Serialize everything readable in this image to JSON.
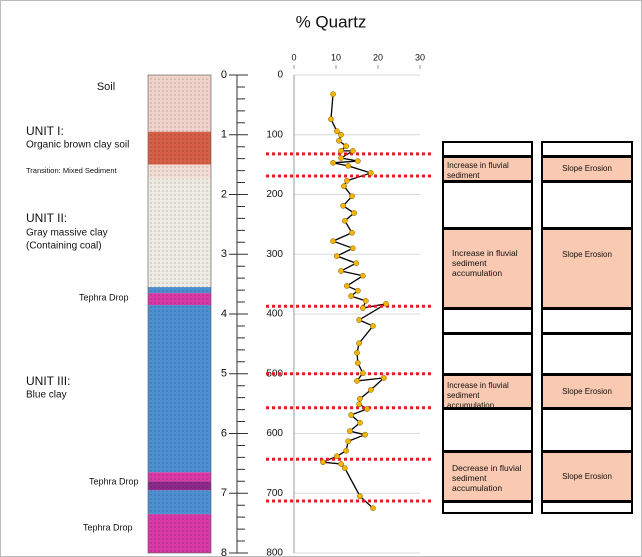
{
  "chart_data": {
    "type": "line",
    "title": "% Quartz",
    "x": [
      9.3,
      8.8,
      10.2,
      11.2,
      10.7,
      12.4,
      11.2,
      14,
      11.2,
      15.2,
      9.3,
      12.9,
      18.3,
      12.6,
      11.9,
      13.8,
      11.7,
      14.3,
      12.1,
      13.8,
      9.3,
      14,
      10.2,
      14.8,
      11.2,
      16.4,
      12.6,
      15.2,
      13.6,
      17.1,
      16.4,
      21.9,
      15.5,
      18.8,
      15.5,
      15,
      15.2,
      16.4,
      15,
      21.4,
      18.3,
      15.7,
      15.5,
      17.4,
      13.6,
      15.7,
      13.3,
      16.9,
      12.9,
      12.4,
      10.2,
      6.9,
      11.2,
      12.1,
      15.7,
      18.8
    ],
    "values": [
      32,
      74,
      94,
      100,
      110,
      119,
      127,
      127,
      139,
      144,
      147,
      152,
      164,
      177,
      186,
      203,
      219,
      231,
      244,
      264,
      278,
      290,
      303,
      315,
      328,
      336,
      353,
      361,
      370,
      378,
      390,
      383,
      410,
      420,
      449,
      465,
      482,
      499,
      512,
      507,
      527,
      542,
      551,
      559,
      569,
      582,
      596,
      602,
      613,
      629,
      638,
      648,
      651,
      658,
      705,
      725
    ],
    "color": "#f5b400",
    "line_color": "#000000",
    "xlim": [
      0,
      30
    ],
    "xticks": [
      0,
      10,
      20,
      30
    ],
    "ylim": [
      0,
      800
    ],
    "yticks": [
      0,
      100,
      200,
      300,
      400,
      500,
      600,
      700,
      800
    ],
    "grid": true,
    "boundaries": [
      132,
      169,
      387,
      500,
      557,
      643,
      713
    ],
    "boundary_color": "#e0201e"
  },
  "strat_column": {
    "ylim": [
      0,
      8
    ],
    "yticks": [
      0,
      1,
      2,
      3,
      4,
      5,
      6,
      7,
      8
    ],
    "layers": [
      {
        "top": 0,
        "bottom": 0.95,
        "color": "#efd3cb"
      },
      {
        "top": 0.95,
        "bottom": 1.5,
        "color": "#d65f48"
      },
      {
        "top": 1.5,
        "bottom": 1.72,
        "color": "#f3ddd5"
      },
      {
        "top": 1.72,
        "bottom": 3.55,
        "color": "#eeebe3"
      },
      {
        "top": 3.55,
        "bottom": 3.65,
        "color": "#4d8fd0"
      },
      {
        "top": 3.65,
        "bottom": 3.85,
        "color": "#d93aa8"
      },
      {
        "top": 3.85,
        "bottom": 6.65,
        "color": "#4d8fd0"
      },
      {
        "top": 6.65,
        "bottom": 6.8,
        "color": "#d93aa8"
      },
      {
        "top": 6.8,
        "bottom": 6.95,
        "color": "#8d2a8c"
      },
      {
        "top": 6.95,
        "bottom": 7.35,
        "color": "#4d8fd0"
      },
      {
        "top": 7.35,
        "bottom": 8,
        "color": "#d93aa8"
      }
    ],
    "labels": [
      "Soil",
      "UNIT I:",
      "Organic brown clay soil",
      "Transition: Mixed Sediment",
      "UNIT II:",
      "Gray massive clay",
      "(Containing coal)",
      "Tephra Drop",
      "UNIT III:",
      "Blue clay",
      "Tephra Drop",
      "Tephra Drop"
    ]
  },
  "interpretation": {
    "rows": [
      {
        "cause": "Increase in fluvial sediment accumulation",
        "process": "Slope Erosion"
      },
      {
        "cause": "Increase in fluvial sediment accumulation",
        "process": "Slope Erosion"
      },
      {
        "cause": "Increase in fluvial sediment accumulation",
        "process": "Slope Erosion"
      },
      {
        "cause": "Decrease in fluvial sediment accumulation",
        "process": "Slope Erosion"
      }
    ]
  }
}
